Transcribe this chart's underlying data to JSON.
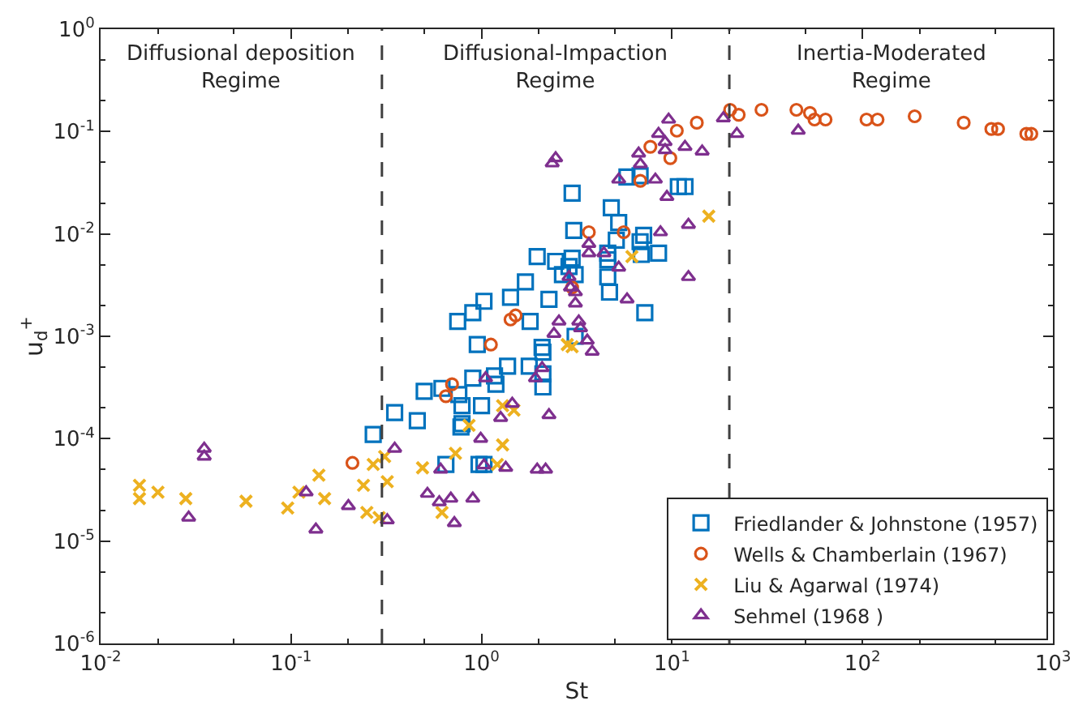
{
  "chart_data": {
    "type": "scatter",
    "xlabel": "St",
    "ylabel": "u$_{d}$$^{+}$",
    "log": "xy",
    "xlim": [
      0.01,
      1000
    ],
    "ylim": [
      1e-06,
      1
    ],
    "xticks": [
      {
        "value": 0.01,
        "label": "10$^{-2}$"
      },
      {
        "value": 0.1,
        "label": "10$^{-1}$"
      },
      {
        "value": 1,
        "label": "10$^{0}$"
      },
      {
        "value": 10,
        "label": "10$^{1}$"
      },
      {
        "value": 100,
        "label": "10$^{2}$"
      },
      {
        "value": 1000,
        "label": "10$^{3}$"
      }
    ],
    "yticks": [
      {
        "value": 1e-06,
        "label": "10$^{-6}$"
      },
      {
        "value": 1e-05,
        "label": "10$^{-5}$"
      },
      {
        "value": 0.0001,
        "label": "10$^{-4}$"
      },
      {
        "value": 0.001,
        "label": "10$^{-3}$"
      },
      {
        "value": 0.01,
        "label": "10$^{-2}$"
      },
      {
        "value": 0.1,
        "label": "10$^{-1}$"
      },
      {
        "value": 1,
        "label": "10$^{0}$"
      }
    ],
    "legend": "bottom right",
    "ref_lines": [
      {
        "axis": "x",
        "value": 0.3,
        "color": "#404040",
        "line_style": "dashed"
      },
      {
        "axis": "x",
        "value": 20,
        "color": "#404040",
        "line_style": "dashed"
      }
    ],
    "annotations": [
      "Diffusional deposition\nRegime",
      "Diffusional-Impaction\nRegime",
      "Inertia-Moderated\nRegime"
    ],
    "series": [
      {
        "name": "Friedlander & Johnstone (1957)",
        "color": "#0072bd",
        "marker": "square",
        "x": [
          0.27,
          0.35,
          0.46,
          0.5,
          0.62,
          0.76,
          0.79,
          0.79,
          0.78,
          0.65,
          0.97,
          1.03,
          1.0,
          0.9,
          1.17,
          1.19,
          1.37,
          0.95,
          0.75,
          0.9,
          1.03,
          1.42,
          1.7,
          1.8,
          1.96,
          1.78,
          2.08,
          2.1,
          2.1,
          2.1,
          2.26,
          2.45,
          2.66,
          2.88,
          2.99,
          3.1,
          3.05,
          2.99,
          3.1,
          4.6,
          4.6,
          4.6,
          4.7,
          4.8,
          5.25,
          5.1,
          6.8,
          7.1,
          6.9,
          8.5,
          7.2,
          5.8,
          6.8,
          10.8,
          11.7
        ],
        "values": [
          0.00011,
          0.00018,
          0.00015,
          0.00029,
          0.00031,
          0.00027,
          0.00021,
          0.00014,
          0.00013,
          5.6e-05,
          5.6e-05,
          5.6e-05,
          0.00021,
          0.00039,
          0.00041,
          0.00034,
          0.00051,
          0.00083,
          0.0014,
          0.0017,
          0.0022,
          0.0024,
          0.0034,
          0.0014,
          0.006,
          0.00051,
          0.00078,
          0.0007,
          0.00043,
          0.00032,
          0.0023,
          0.0054,
          0.004,
          0.0048,
          0.0058,
          0.004,
          0.0108,
          0.025,
          0.001,
          0.0065,
          0.0056,
          0.0038,
          0.0027,
          0.018,
          0.0129,
          0.0087,
          0.0084,
          0.0097,
          0.0063,
          0.0065,
          0.0017,
          0.036,
          0.037,
          0.029,
          0.029
        ]
      },
      {
        "name": "Wells & Chamberlain (1967)",
        "color": "#d95319",
        "marker": "circle",
        "x": [
          0.21,
          0.7,
          0.65,
          1.12,
          1.42,
          1.51,
          2.99,
          3.66,
          5.58,
          6.82,
          7.7,
          9.8,
          10.6,
          13.5,
          20.2,
          22.4,
          29.5,
          45,
          53,
          56,
          64,
          105,
          120,
          188,
          340,
          475,
          515,
          725,
          770
        ],
        "values": [
          5.8e-05,
          0.00034,
          0.00026,
          0.00083,
          0.00146,
          0.0016,
          0.003,
          0.0104,
          0.0104,
          0.033,
          0.071,
          0.055,
          0.102,
          0.122,
          0.163,
          0.146,
          0.163,
          0.163,
          0.152,
          0.131,
          0.131,
          0.131,
          0.131,
          0.141,
          0.122,
          0.106,
          0.106,
          0.095,
          0.095
        ]
      },
      {
        "name": "Liu & Agarwal (1974)",
        "color": "#edb120",
        "marker": "cross",
        "x": [
          0.016,
          0.016,
          0.02,
          0.028,
          0.058,
          0.096,
          0.11,
          0.14,
          0.15,
          0.24,
          0.27,
          0.25,
          0.29,
          0.31,
          0.32,
          0.49,
          0.73,
          0.62,
          0.86,
          1.29,
          1.21,
          1.29,
          1.48,
          2.82,
          2.99,
          6.16,
          15.6
        ],
        "values": [
          3.5e-05,
          2.6e-05,
          3e-05,
          2.6e-05,
          2.45e-05,
          2.1e-05,
          3e-05,
          4.4e-05,
          2.6e-05,
          3.5e-05,
          5.6e-05,
          1.9e-05,
          1.7e-05,
          6.7e-05,
          3.8e-05,
          5.2e-05,
          7.2e-05,
          1.9e-05,
          0.000135,
          8.7e-05,
          5.6e-05,
          0.00021,
          0.00019,
          0.00083,
          0.00079,
          0.006,
          0.0149
        ]
      },
      {
        "name": "Sehmel (1968 )",
        "color": "#7e2f8e",
        "marker": "triangle",
        "x": [
          0.035,
          0.035,
          0.029,
          0.12,
          0.135,
          0.2,
          0.35,
          0.32,
          0.52,
          0.6,
          0.69,
          0.9,
          0.72,
          0.61,
          0.99,
          1.03,
          1.26,
          1.34,
          1.96,
          2.17,
          2.26,
          1.45,
          1.05,
          1.92,
          2.08,
          2.4,
          2.55,
          2.45,
          2.35,
          2.88,
          2.93,
          3.11,
          3.11,
          3.24,
          3.31,
          3.59,
          3.81,
          3.66,
          3.66,
          4.39,
          5.25,
          5.81,
          5.25,
          6.82,
          8.18,
          6.68,
          8.7,
          9.4,
          9.2,
          9.2,
          8.5,
          11.7,
          12.2,
          12.2,
          9.6,
          14.4,
          18.6,
          21.9,
          46
        ],
        "values": [
          8e-05,
          6.7e-05,
          1.7e-05,
          3e-05,
          1.3e-05,
          2.2e-05,
          8e-05,
          1.6e-05,
          2.9e-05,
          2.4e-05,
          2.6e-05,
          2.6e-05,
          1.5e-05,
          5e-05,
          0.0001,
          5.5e-05,
          0.00016,
          5.2e-05,
          5e-05,
          5e-05,
          0.00017,
          0.00022,
          0.00039,
          0.00039,
          0.00049,
          0.00106,
          0.0014,
          0.055,
          0.049,
          0.0038,
          0.003,
          0.0027,
          0.0021,
          0.0014,
          0.0012,
          0.00091,
          0.00071,
          0.008,
          0.0065,
          0.0065,
          0.0047,
          0.0023,
          0.034,
          0.048,
          0.034,
          0.061,
          0.0104,
          0.023,
          0.079,
          0.066,
          0.095,
          0.071,
          0.0123,
          0.0038,
          0.131,
          0.064,
          0.135,
          0.095,
          0.102
        ]
      }
    ]
  }
}
